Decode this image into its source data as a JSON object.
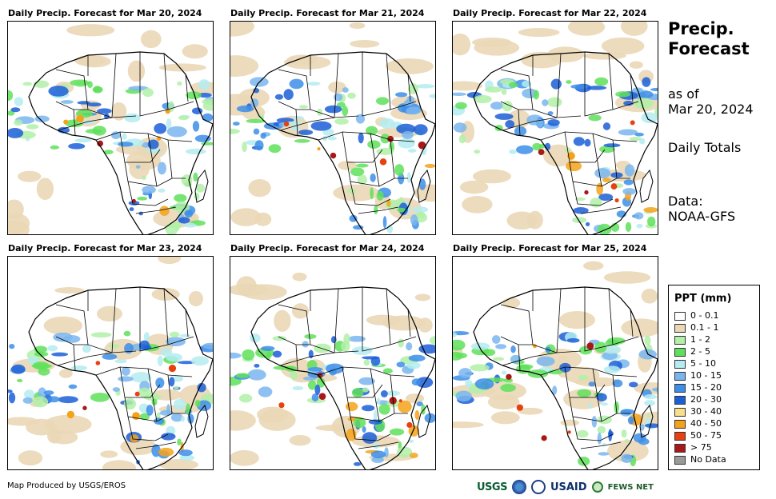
{
  "panels": [
    {
      "title": "Daily Precip. Forecast for Mar 20, 2024"
    },
    {
      "title": "Daily Precip. Forecast for Mar 21, 2024"
    },
    {
      "title": "Daily Precip. Forecast for Mar 22, 2024"
    },
    {
      "title": "Daily Precip. Forecast for Mar 23, 2024"
    },
    {
      "title": "Daily Precip. Forecast for Mar 24, 2024"
    },
    {
      "title": "Daily Precip. Forecast for Mar 25, 2024"
    }
  ],
  "sidebar": {
    "title_line1": "Precip.",
    "title_line2": "Forecast",
    "asof_line1": "as of",
    "asof_line2": "Mar 20, 2024",
    "totals": "Daily Totals",
    "data_line1": "Data:",
    "data_line2": "NOAA-GFS"
  },
  "legend": {
    "title": "PPT (mm)",
    "items": [
      {
        "label": "0 - 0.1",
        "color": "#ffffff"
      },
      {
        "label": "0.1 - 1",
        "color": "#ead7b6"
      },
      {
        "label": "1 - 2",
        "color": "#b2f0a8"
      },
      {
        "label": "2 - 5",
        "color": "#5fe05a"
      },
      {
        "label": "5 - 10",
        "color": "#b4ecf0"
      },
      {
        "label": "10 - 15",
        "color": "#7ab6ee"
      },
      {
        "label": "15 - 20",
        "color": "#3d8ee8"
      },
      {
        "label": "20 - 30",
        "color": "#1b5fd8"
      },
      {
        "label": "30 - 40",
        "color": "#f8e08a"
      },
      {
        "label": "40 - 50",
        "color": "#f4a21a"
      },
      {
        "label": "50 - 75",
        "color": "#e8400e"
      },
      {
        "label": "> 75",
        "color": "#a81818"
      },
      {
        "label": "No Data",
        "color": "#9a9a9a"
      }
    ]
  },
  "footer": {
    "credit": "Map Produced by USGS/EROS",
    "logo_usgs": "USGS",
    "logo_usaid": "USAID",
    "logo_fews": "FEWS NET"
  }
}
